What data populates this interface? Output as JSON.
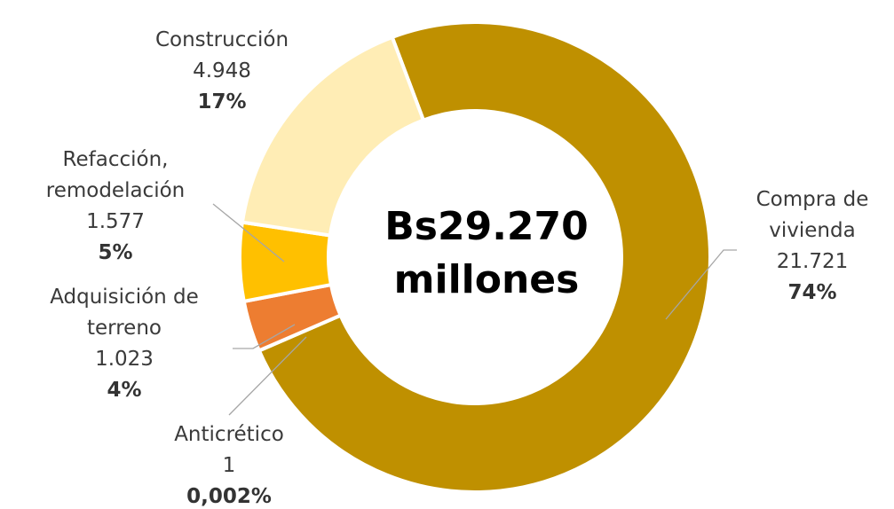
{
  "chart_data": {
    "type": "pie",
    "donut": true,
    "categories": [
      "Compra de vivienda",
      "Anticrético",
      "Adquisición de terreno",
      "Refacción, remodelación",
      "Construcción"
    ],
    "values": [
      21721,
      1,
      1023,
      1577,
      4948
    ],
    "value_labels": [
      "21.721",
      "1",
      "1.023",
      "1.577",
      "4.948"
    ],
    "percents": [
      74,
      0.002,
      4,
      5,
      17
    ],
    "percent_labels": [
      "74%",
      "0,002%",
      "4%",
      "5%",
      "17%"
    ],
    "colors": [
      "#bf9000",
      "#a5a5a5",
      "#ed7d31",
      "#ffc000",
      "#ffedb5"
    ],
    "center_text": [
      "Bs29.270",
      "millones"
    ]
  }
}
